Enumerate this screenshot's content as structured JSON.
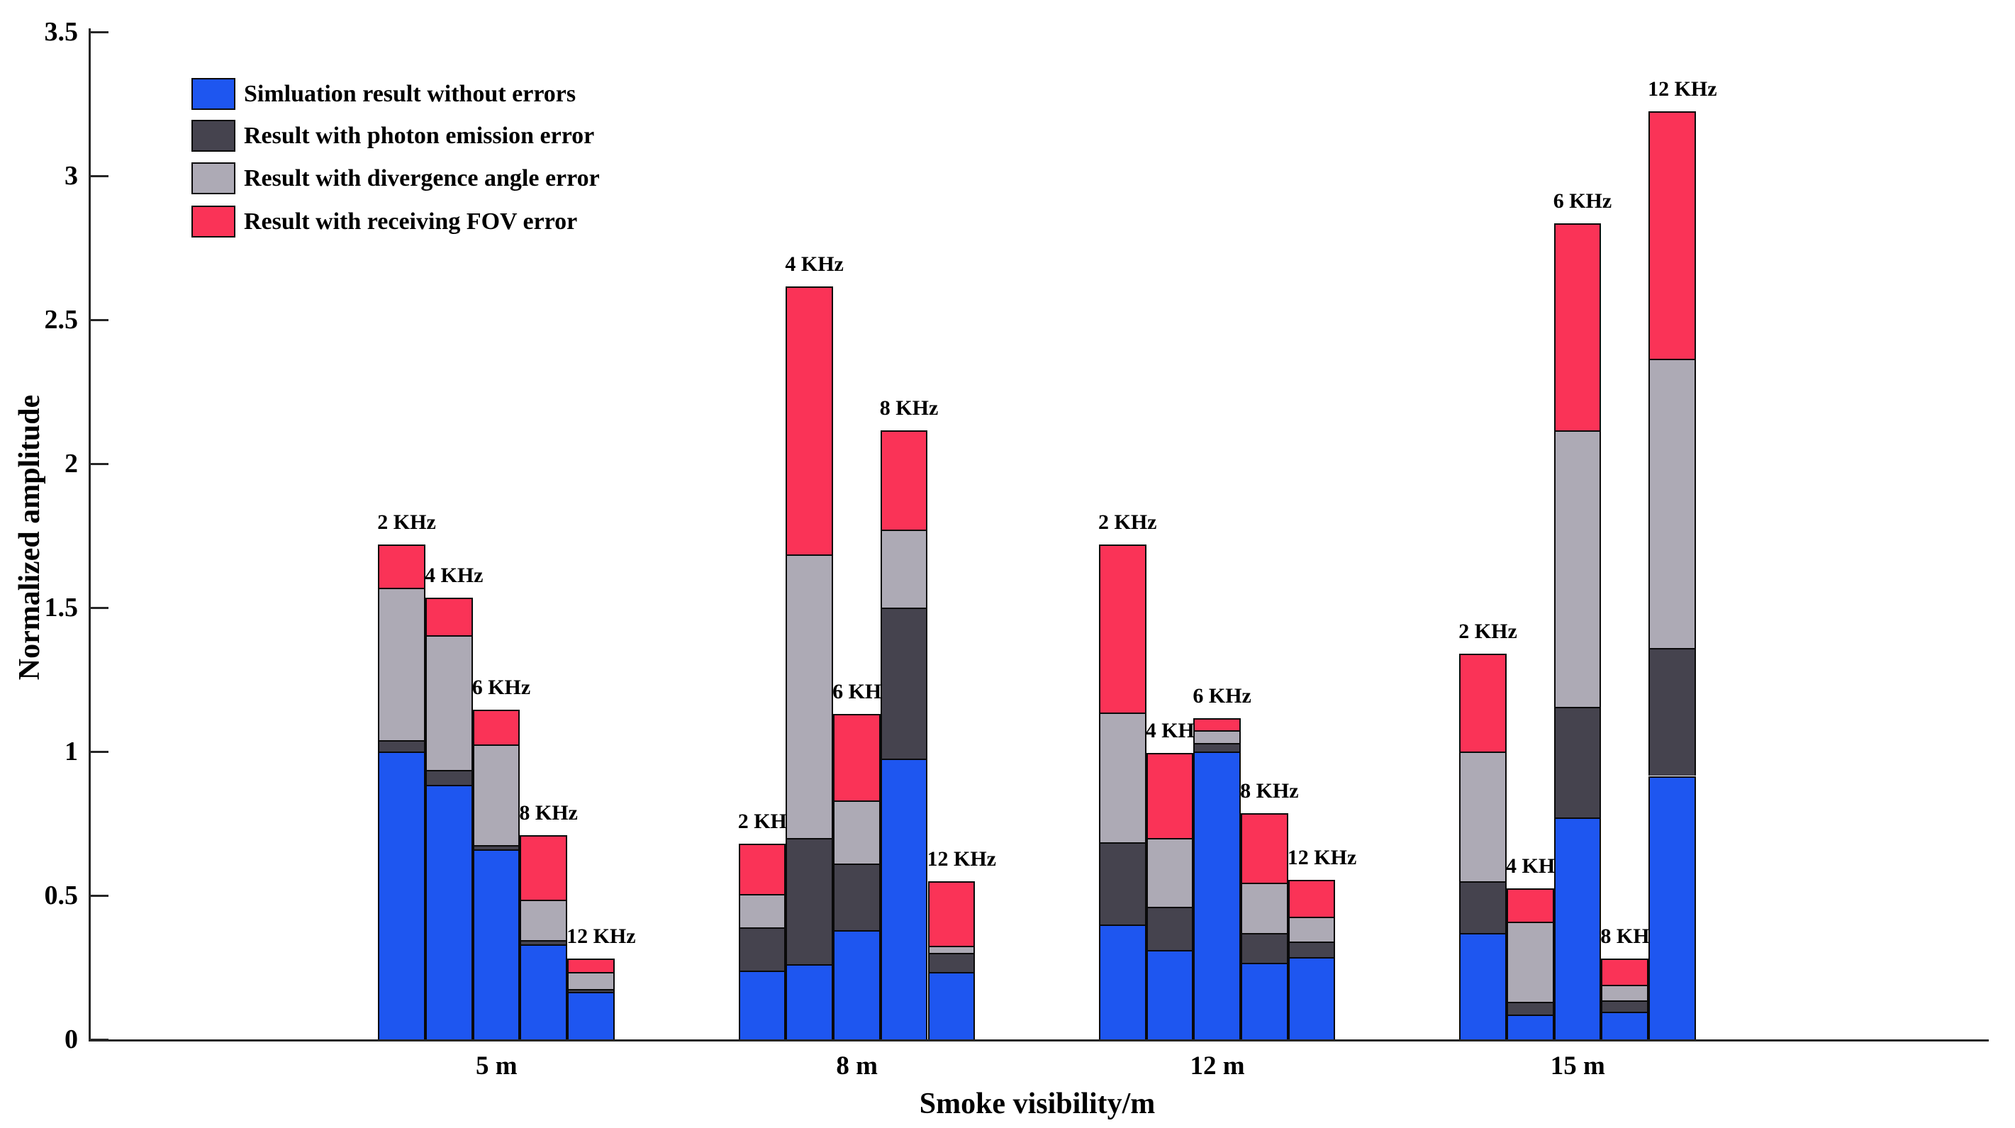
{
  "figure": {
    "ylabel": "Normalized amplitude",
    "xlabel": "Smoke visibility/m"
  },
  "legend": {
    "items": [
      {
        "key": "simulation-no-errors",
        "label": "Simluation result without errors",
        "color": "#1E56F0"
      },
      {
        "key": "photon-emission-error",
        "label": "Result with photon emission error",
        "color": "#45434E"
      },
      {
        "key": "divergence-angle-error",
        "label": "Result with divergence angle error",
        "color": "#ADAAB5"
      },
      {
        "key": "receiving-fov-error",
        "label": "Result with receiving FOV error",
        "color": "#FA3357"
      }
    ]
  },
  "chart_data": {
    "type": "bar",
    "stacked": true,
    "title": "",
    "xlabel": "Smoke visibility/m",
    "ylabel": "Normalized amplitude",
    "ylim": [
      0,
      3.5
    ],
    "yticks": [
      0,
      0.5,
      1,
      1.5,
      2,
      2.5,
      3,
      3.5
    ],
    "grid": false,
    "legend_position": "top-left-inside",
    "series": [
      "Simluation result without errors",
      "Result with photon emission error",
      "Result with divergence angle error",
      "Result with receiving FOV error"
    ],
    "categories": [
      "5 m",
      "8 m",
      "12 m",
      "15 m"
    ],
    "groups": [
      {
        "category": "5 m",
        "bars": [
          {
            "label": "2 KHz",
            "segments": [
              1.0,
              0.04,
              0.53,
              0.15
            ],
            "total": 1.72
          },
          {
            "label": "4 KHz",
            "segments": [
              0.885,
              0.05,
              0.47,
              0.13
            ],
            "total": 1.535
          },
          {
            "label": "6 KHz",
            "segments": [
              0.66,
              0.015,
              0.35,
              0.12
            ],
            "total": 1.145
          },
          {
            "label": "8 KHz",
            "segments": [
              0.33,
              0.015,
              0.14,
              0.225
            ],
            "total": 0.71
          },
          {
            "label": "12 KHz",
            "segments": [
              0.165,
              0.01,
              0.06,
              0.045
            ],
            "total": 0.28
          }
        ]
      },
      {
        "category": "8 m",
        "bars": [
          {
            "label": "2 KHz",
            "segments": [
              0.24,
              0.15,
              0.115,
              0.175
            ],
            "total": 0.68
          },
          {
            "label": "4 KHz",
            "segments": [
              0.26,
              0.44,
              0.985,
              0.93
            ],
            "total": 2.615
          },
          {
            "label": "6 KHz",
            "segments": [
              0.38,
              0.23,
              0.22,
              0.3
            ],
            "total": 1.13
          },
          {
            "label": "8 KHz",
            "segments": [
              0.975,
              0.525,
              0.27,
              0.345
            ],
            "total": 2.115
          },
          {
            "label": "12 KHz",
            "segments": [
              0.235,
              0.065,
              0.025,
              0.225
            ],
            "total": 0.55
          }
        ]
      },
      {
        "category": "12 m",
        "bars": [
          {
            "label": "2 KHz",
            "segments": [
              0.4,
              0.285,
              0.45,
              0.585
            ],
            "total": 1.72
          },
          {
            "label": "4 KHz",
            "segments": [
              0.31,
              0.15,
              0.24,
              0.295
            ],
            "total": 0.995
          },
          {
            "label": "6 KHz",
            "segments": [
              1.0,
              0.03,
              0.045,
              0.04
            ],
            "total": 1.115
          },
          {
            "label": "8 KHz",
            "segments": [
              0.265,
              0.105,
              0.175,
              0.24
            ],
            "total": 0.785
          },
          {
            "label": "12 KHz",
            "segments": [
              0.285,
              0.055,
              0.085,
              0.13
            ],
            "total": 0.555
          }
        ]
      },
      {
        "category": "15 m",
        "bars": [
          {
            "label": "2 KHz",
            "segments": [
              0.37,
              0.18,
              0.45,
              0.34
            ],
            "total": 1.34
          },
          {
            "label": "4 KHz",
            "segments": [
              0.085,
              0.045,
              0.28,
              0.115
            ],
            "total": 0.525
          },
          {
            "label": "6 KHz",
            "segments": [
              0.77,
              0.385,
              0.96,
              0.72
            ],
            "total": 2.835
          },
          {
            "label": "8 KHz",
            "segments": [
              0.095,
              0.04,
              0.055,
              0.09
            ],
            "total": 0.28
          },
          {
            "label": "12 KHz",
            "segments": [
              0.915,
              0.445,
              1.005,
              0.86
            ],
            "total": 3.225
          }
        ]
      }
    ]
  }
}
